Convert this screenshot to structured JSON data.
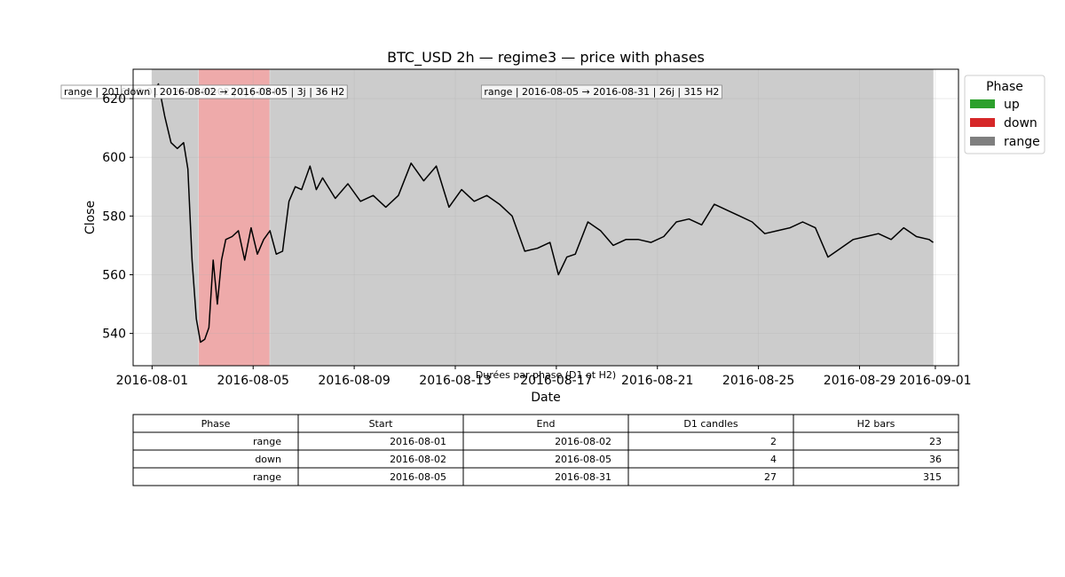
{
  "chart_data": {
    "type": "line",
    "title": "BTC_USD 2h — regime3 — price with phases",
    "xlabel": "Date",
    "ylabel": "Close",
    "xlim": [
      "2016-07-31T06:00",
      "2016-09-01T22:00"
    ],
    "ylim": [
      529,
      630
    ],
    "x_ticks": [
      "2016-08-01",
      "2016-08-05",
      "2016-08-09",
      "2016-08-13",
      "2016-08-17",
      "2016-08-21",
      "2016-08-25",
      "2016-08-29",
      "2016-09-01"
    ],
    "y_ticks": [
      540,
      560,
      580,
      600,
      620
    ],
    "grid": true,
    "phase_colors": {
      "up": "#2ca02c",
      "down": "#d62728",
      "range": "#7f7f7f"
    },
    "phases": [
      {
        "phase": "range",
        "start": "2016-08-01T00:00",
        "end": "2016-08-02T20:00",
        "label": "range | 2016-08-01 → 2016-08-02 | 2j | 23 H2"
      },
      {
        "phase": "down",
        "start": "2016-08-02T20:00",
        "end": "2016-08-05T16:00",
        "label": "down | 2016-08-02 → 2016-08-05 | 3j | 36 H2"
      },
      {
        "phase": "range",
        "start": "2016-08-05T16:00",
        "end": "2016-08-31T22:00",
        "label": "range | 2016-08-05 → 2016-08-31 | 26j | 315 H2"
      }
    ],
    "series": [
      {
        "color": "#000000",
        "points": [
          [
            "2016-08-01T00:00",
            622
          ],
          [
            "2016-08-01T06:00",
            625
          ],
          [
            "2016-08-01T12:00",
            614
          ],
          [
            "2016-08-01T18:00",
            605
          ],
          [
            "2016-08-02T00:00",
            603
          ],
          [
            "2016-08-02T06:00",
            605
          ],
          [
            "2016-08-02T10:00",
            596
          ],
          [
            "2016-08-02T14:00",
            565
          ],
          [
            "2016-08-02T18:00",
            545
          ],
          [
            "2016-08-02T22:00",
            537
          ],
          [
            "2016-08-03T02:00",
            538
          ],
          [
            "2016-08-03T06:00",
            542
          ],
          [
            "2016-08-03T10:00",
            565
          ],
          [
            "2016-08-03T14:00",
            550
          ],
          [
            "2016-08-03T18:00",
            565
          ],
          [
            "2016-08-03T22:00",
            572
          ],
          [
            "2016-08-04T04:00",
            573
          ],
          [
            "2016-08-04T10:00",
            575
          ],
          [
            "2016-08-04T16:00",
            565
          ],
          [
            "2016-08-04T22:00",
            576
          ],
          [
            "2016-08-05T04:00",
            567
          ],
          [
            "2016-08-05T10:00",
            572
          ],
          [
            "2016-08-05T16:00",
            575
          ],
          [
            "2016-08-05T22:00",
            567
          ],
          [
            "2016-08-06T04:00",
            568
          ],
          [
            "2016-08-06T10:00",
            585
          ],
          [
            "2016-08-06T16:00",
            590
          ],
          [
            "2016-08-06T22:00",
            589
          ],
          [
            "2016-08-07T06:00",
            597
          ],
          [
            "2016-08-07T12:00",
            589
          ],
          [
            "2016-08-07T18:00",
            593
          ],
          [
            "2016-08-08T06:00",
            586
          ],
          [
            "2016-08-08T18:00",
            591
          ],
          [
            "2016-08-09T06:00",
            585
          ],
          [
            "2016-08-09T18:00",
            587
          ],
          [
            "2016-08-10T06:00",
            583
          ],
          [
            "2016-08-10T18:00",
            587
          ],
          [
            "2016-08-11T06:00",
            598
          ],
          [
            "2016-08-11T18:00",
            592
          ],
          [
            "2016-08-12T06:00",
            597
          ],
          [
            "2016-08-12T18:00",
            583
          ],
          [
            "2016-08-13T06:00",
            589
          ],
          [
            "2016-08-13T18:00",
            585
          ],
          [
            "2016-08-14T06:00",
            587
          ],
          [
            "2016-08-14T18:00",
            584
          ],
          [
            "2016-08-15T06:00",
            580
          ],
          [
            "2016-08-15T18:00",
            568
          ],
          [
            "2016-08-16T06:00",
            569
          ],
          [
            "2016-08-16T18:00",
            571
          ],
          [
            "2016-08-17T02:00",
            560
          ],
          [
            "2016-08-17T10:00",
            566
          ],
          [
            "2016-08-17T18:00",
            567
          ],
          [
            "2016-08-18T06:00",
            578
          ],
          [
            "2016-08-18T18:00",
            575
          ],
          [
            "2016-08-19T06:00",
            570
          ],
          [
            "2016-08-19T18:00",
            572
          ],
          [
            "2016-08-20T06:00",
            572
          ],
          [
            "2016-08-20T18:00",
            571
          ],
          [
            "2016-08-21T06:00",
            573
          ],
          [
            "2016-08-21T18:00",
            578
          ],
          [
            "2016-08-22T06:00",
            579
          ],
          [
            "2016-08-22T18:00",
            577
          ],
          [
            "2016-08-23T06:00",
            584
          ],
          [
            "2016-08-23T18:00",
            582
          ],
          [
            "2016-08-24T06:00",
            580
          ],
          [
            "2016-08-24T18:00",
            578
          ],
          [
            "2016-08-25T06:00",
            574
          ],
          [
            "2016-08-25T18:00",
            575
          ],
          [
            "2016-08-26T06:00",
            576
          ],
          [
            "2016-08-26T18:00",
            578
          ],
          [
            "2016-08-27T06:00",
            576
          ],
          [
            "2016-08-27T18:00",
            566
          ],
          [
            "2016-08-28T06:00",
            569
          ],
          [
            "2016-08-28T18:00",
            572
          ],
          [
            "2016-08-29T06:00",
            573
          ],
          [
            "2016-08-29T18:00",
            574
          ],
          [
            "2016-08-30T06:00",
            572
          ],
          [
            "2016-08-30T18:00",
            576
          ],
          [
            "2016-08-31T06:00",
            573
          ],
          [
            "2016-08-31T18:00",
            572
          ],
          [
            "2016-08-31T22:00",
            571
          ]
        ]
      }
    ],
    "legend": {
      "title": "Phase",
      "entries": [
        {
          "label": "up",
          "color": "#2ca02c"
        },
        {
          "label": "down",
          "color": "#d62728"
        },
        {
          "label": "range",
          "color": "#7f7f7f"
        }
      ],
      "position": "outside-right-top"
    }
  },
  "table": {
    "title": "Durées par phase (D1 et H2)",
    "columns": [
      "Phase",
      "Start",
      "End",
      "D1 candles",
      "H2 bars"
    ],
    "rows": [
      [
        "range",
        "2016-08-01",
        "2016-08-02",
        "2",
        "23"
      ],
      [
        "down",
        "2016-08-02",
        "2016-08-05",
        "4",
        "36"
      ],
      [
        "range",
        "2016-08-05",
        "2016-08-31",
        "27",
        "315"
      ]
    ]
  }
}
